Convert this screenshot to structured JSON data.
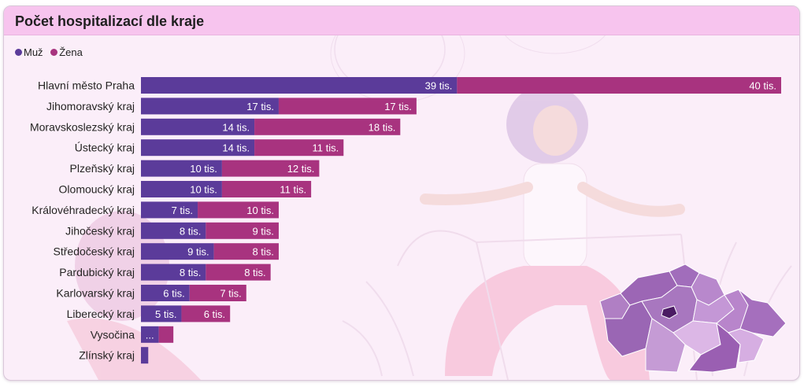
{
  "title": "Počet hospitalizací dle kraje",
  "legend": [
    {
      "name": "Muž",
      "color": "#5b3b9a"
    },
    {
      "name": "Žena",
      "color": "#a8337f"
    }
  ],
  "chart_data": {
    "type": "bar",
    "orientation": "horizontal",
    "stacked": true,
    "unit": "tis.",
    "categories": [
      "Hlavní město Praha",
      "Jihomoravský kraj",
      "Moravskoslezský kraj",
      "Ústecký kraj",
      "Plzeňský kraj",
      "Olomoucký kraj",
      "Královéhradecký kraj",
      "Jihočeský kraj",
      "Středočeský kraj",
      "Pardubický kraj",
      "Karlovarský kraj",
      "Liberecký kraj",
      "Vysočina",
      "Zlínský kraj"
    ],
    "series": [
      {
        "name": "Muž",
        "color": "#5b3b9a",
        "values": [
          39,
          17,
          14,
          14,
          10,
          10,
          7,
          8,
          9,
          8,
          6,
          5,
          2.2,
          0.9
        ],
        "labels": [
          "39 tis.",
          "17 tis.",
          "14 tis.",
          "14 tis.",
          "10 tis.",
          "10 tis.",
          "7 tis.",
          "8 tis.",
          "9 tis.",
          "8 tis.",
          "6 tis.",
          "5 tis.",
          "...",
          ""
        ]
      },
      {
        "name": "Žena",
        "color": "#a8337f",
        "values": [
          40,
          17,
          18,
          11,
          12,
          11,
          10,
          9,
          8,
          8,
          7,
          6,
          1.8,
          0
        ],
        "labels": [
          "40 tis.",
          "17 tis.",
          "18 tis.",
          "11 tis.",
          "12 tis.",
          "11 tis.",
          "10 tis.",
          "9 tis.",
          "8 tis.",
          "8 tis.",
          "7 tis.",
          "6 tis.",
          "",
          ""
        ]
      }
    ],
    "xlim": [
      0,
      79
    ],
    "grid": false,
    "legend_position": "top-left"
  }
}
